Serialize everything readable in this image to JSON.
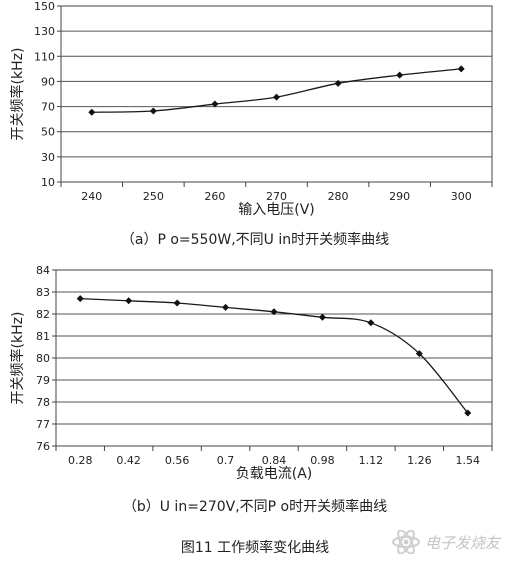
{
  "chart_data": [
    {
      "type": "line",
      "title": "",
      "xlabel": "输入电压(V)",
      "ylabel": "开关频率(kHz)",
      "x": [
        240,
        250,
        260,
        270,
        280,
        290,
        300
      ],
      "series": [
        {
          "values": [
            65.5,
            66.5,
            72,
            77.5,
            88.5,
            95,
            100
          ]
        }
      ],
      "x_ticks": [
        "240",
        "250",
        "260",
        "270",
        "280",
        "290",
        "300"
      ],
      "y_ticks": [
        "10",
        "30",
        "50",
        "70",
        "90",
        "110",
        "130",
        "150"
      ],
      "ylim": [
        10,
        150
      ],
      "grid": "horizontal",
      "caption": "（a）P o=550W,不同U in时开关频率曲线"
    },
    {
      "type": "line",
      "title": "",
      "xlabel": "负载电流(A)",
      "ylabel": "开关频率(kHz)",
      "x": [
        0.28,
        0.42,
        0.56,
        0.7,
        0.84,
        0.98,
        1.12,
        1.26,
        1.54
      ],
      "series": [
        {
          "values": [
            82.7,
            82.6,
            82.5,
            82.3,
            82.1,
            81.85,
            81.6,
            80.2,
            77.5
          ]
        }
      ],
      "x_ticks": [
        "0.28",
        "0.42",
        "0.56",
        "0.7",
        "0.84",
        "0.98",
        "1.12",
        "1.26",
        "1.54"
      ],
      "y_ticks": [
        "76",
        "77",
        "78",
        "79",
        "80",
        "81",
        "82",
        "83",
        "84"
      ],
      "ylim": [
        76,
        84
      ],
      "grid": "horizontal",
      "caption": "（b）U in=270V,不同P o时开关频率曲线"
    }
  ],
  "figure_caption": "图11 工作频率变化曲线",
  "watermark": {
    "text": "电子发烧友",
    "icon": "electron-logo-icon",
    "color": "#c5c5c5"
  }
}
